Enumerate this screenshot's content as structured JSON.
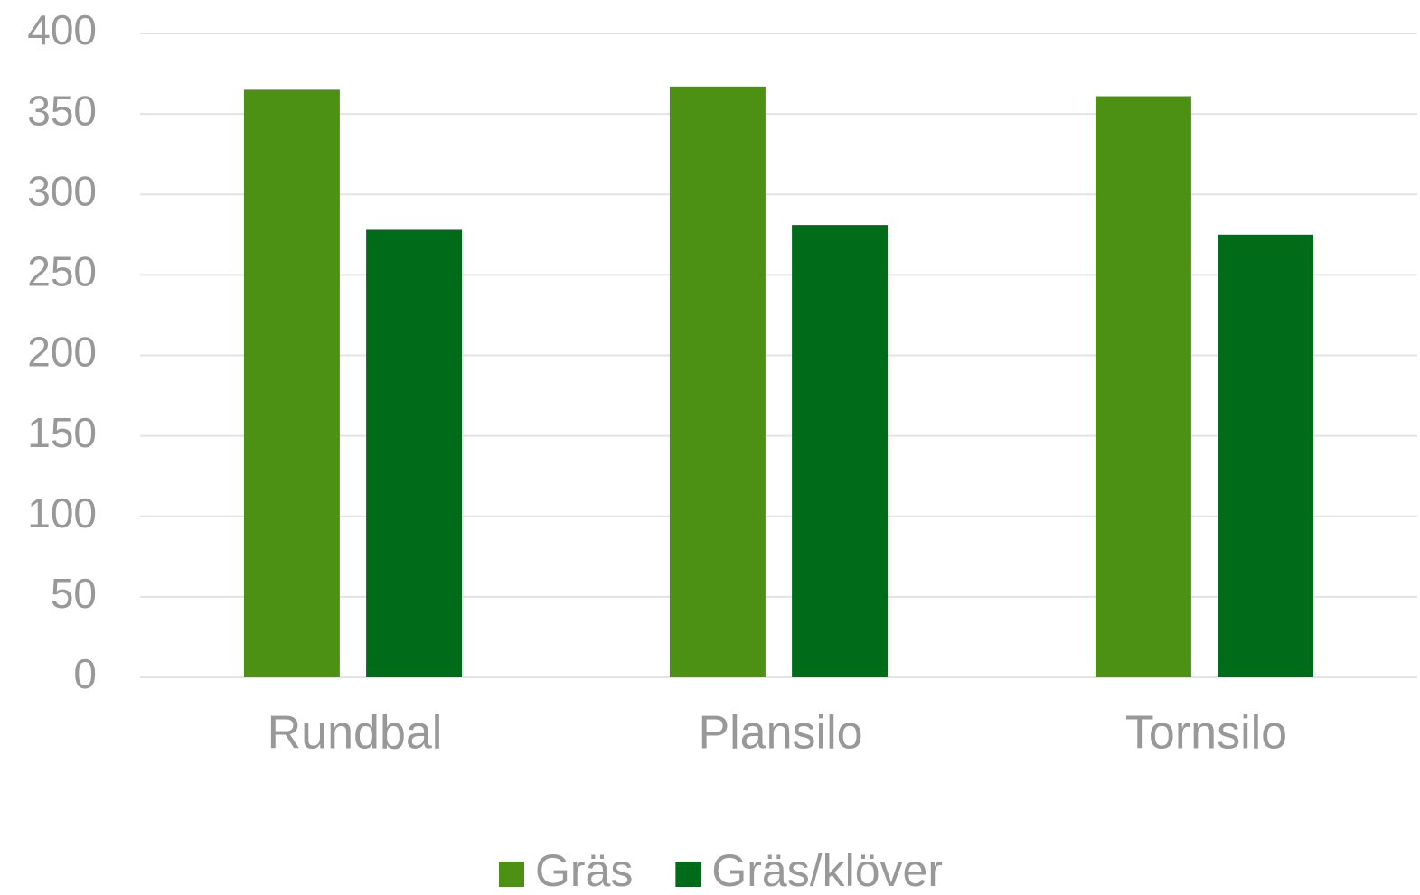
{
  "chart_data": {
    "type": "bar",
    "categories": [
      "Rundbal",
      "Plansilo",
      "Tornsilo"
    ],
    "series": [
      {
        "name": "Gräs",
        "color": "#4c9113",
        "values": [
          365,
          367,
          361
        ]
      },
      {
        "name": "Gräs/klöver",
        "color": "#006b18",
        "values": [
          278,
          281,
          275
        ]
      }
    ],
    "ylim": [
      0,
      400
    ],
    "yticks": [
      0,
      50,
      100,
      150,
      200,
      250,
      300,
      350,
      400
    ],
    "grid": true,
    "legend": "bottom"
  }
}
